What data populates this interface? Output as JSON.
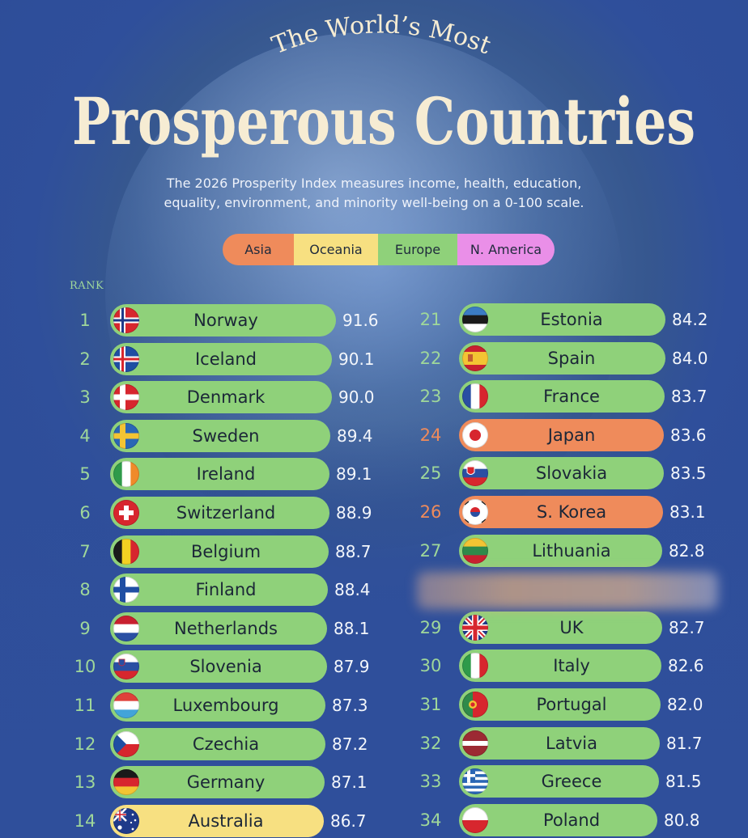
{
  "title": {
    "line1": "The World’s Most",
    "line2": "Prosperous Countries"
  },
  "subtitle": {
    "line1": "The 2026 Prosperity Index measures income, health, education,",
    "line2": "equality, environment, and minority well-being on a 0-100 scale."
  },
  "legend": [
    {
      "label": "Asia",
      "color": "#ef8b5b"
    },
    {
      "label": "Oceania",
      "color": "#f7e081"
    },
    {
      "label": "Europe",
      "color": "#8fd17a"
    },
    {
      "label": "N. America",
      "color": "#ea8fe8"
    }
  ],
  "rank_header": "RANK",
  "colors": {
    "background": "#2f4f9b",
    "rank_text": "#9fd79a",
    "rank_text_asia": "#ef8b5b",
    "score_text": "#f3f6fb"
  },
  "chart_data": {
    "type": "bar",
    "value_min": 0,
    "value_max": 100,
    "rows": [
      {
        "rank": "1",
        "country": "Norway",
        "score": "91.6",
        "region": "Europe",
        "flag": "norway-flag"
      },
      {
        "rank": "2",
        "country": "Iceland",
        "score": "90.1",
        "region": "Europe",
        "flag": "iceland-flag"
      },
      {
        "rank": "3",
        "country": "Denmark",
        "score": "90.0",
        "region": "Europe",
        "flag": "denmark-flag"
      },
      {
        "rank": "4",
        "country": "Sweden",
        "score": "89.4",
        "region": "Europe",
        "flag": "sweden-flag"
      },
      {
        "rank": "5",
        "country": "Ireland",
        "score": "89.1",
        "region": "Europe",
        "flag": "ireland-flag"
      },
      {
        "rank": "6",
        "country": "Switzerland",
        "score": "88.9",
        "region": "Europe",
        "flag": "switzerland-flag"
      },
      {
        "rank": "7",
        "country": "Belgium",
        "score": "88.7",
        "region": "Europe",
        "flag": "belgium-flag"
      },
      {
        "rank": "8",
        "country": "Finland",
        "score": "88.4",
        "region": "Europe",
        "flag": "finland-flag"
      },
      {
        "rank": "9",
        "country": "Netherlands",
        "score": "88.1",
        "region": "Europe",
        "flag": "netherlands-flag"
      },
      {
        "rank": "10",
        "country": "Slovenia",
        "score": "87.9",
        "region": "Europe",
        "flag": "slovenia-flag"
      },
      {
        "rank": "11",
        "country": "Luxembourg",
        "score": "87.3",
        "region": "Europe",
        "flag": "luxembourg-flag"
      },
      {
        "rank": "12",
        "country": "Czechia",
        "score": "87.2",
        "region": "Europe",
        "flag": "czechia-flag"
      },
      {
        "rank": "13",
        "country": "Germany",
        "score": "87.1",
        "region": "Europe",
        "flag": "germany-flag"
      },
      {
        "rank": "14",
        "country": "Australia",
        "score": "86.7",
        "region": "Oceania",
        "flag": "australia-flag"
      },
      {
        "rank": "21",
        "country": "Estonia",
        "score": "84.2",
        "region": "Europe",
        "flag": "estonia-flag"
      },
      {
        "rank": "22",
        "country": "Spain",
        "score": "84.0",
        "region": "Europe",
        "flag": "spain-flag"
      },
      {
        "rank": "23",
        "country": "France",
        "score": "83.7",
        "region": "Europe",
        "flag": "france-flag"
      },
      {
        "rank": "24",
        "country": "Japan",
        "score": "83.6",
        "region": "Asia",
        "flag": "japan-flag"
      },
      {
        "rank": "25",
        "country": "Slovakia",
        "score": "83.5",
        "region": "Europe",
        "flag": "slovakia-flag"
      },
      {
        "rank": "26",
        "country": "S. Korea",
        "score": "83.1",
        "region": "Asia",
        "flag": "south-korea-flag"
      },
      {
        "rank": "27",
        "country": "Lithuania",
        "score": "82.8",
        "region": "Europe",
        "flag": "lithuania-flag"
      },
      {
        "rank": "29",
        "country": "UK",
        "score": "82.7",
        "region": "Europe",
        "flag": "uk-flag"
      },
      {
        "rank": "30",
        "country": "Italy",
        "score": "82.6",
        "region": "Europe",
        "flag": "italy-flag"
      },
      {
        "rank": "31",
        "country": "Portugal",
        "score": "82.0",
        "region": "Europe",
        "flag": "portugal-flag"
      },
      {
        "rank": "32",
        "country": "Latvia",
        "score": "81.7",
        "region": "Europe",
        "flag": "latvia-flag"
      },
      {
        "rank": "33",
        "country": "Greece",
        "score": "81.5",
        "region": "Europe",
        "flag": "greece-flag"
      },
      {
        "rank": "34",
        "country": "Poland",
        "score": "80.8",
        "region": "Europe",
        "flag": "poland-flag"
      }
    ]
  }
}
